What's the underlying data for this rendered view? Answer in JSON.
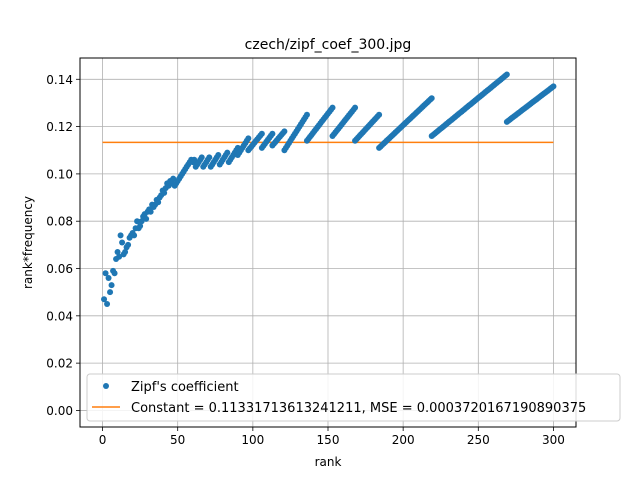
{
  "chart_data": {
    "type": "scatter",
    "title": "czech/zipf_coef_300.jpg",
    "xlabel": "rank",
    "ylabel": "rank*frequency",
    "xlim": [
      -15,
      315
    ],
    "ylim": [
      -0.007,
      0.149
    ],
    "xticks": [
      0,
      50,
      100,
      150,
      200,
      250,
      300
    ],
    "xtick_labels": [
      "0",
      "50",
      "100",
      "150",
      "200",
      "250",
      "300"
    ],
    "yticks": [
      0.0,
      0.02,
      0.04,
      0.06,
      0.08,
      0.1,
      0.12,
      0.14
    ],
    "ytick_labels": [
      "0.00",
      "0.02",
      "0.04",
      "0.06",
      "0.08",
      "0.10",
      "0.12",
      "0.14"
    ],
    "grid": true,
    "legend_position": "lower-right",
    "series": [
      {
        "name": "Zipf's coefficient",
        "kind": "points",
        "color": "#1f77b4",
        "early_points": [
          [
            1,
            0.047
          ],
          [
            2,
            0.058
          ],
          [
            3,
            0.045
          ],
          [
            4,
            0.056
          ],
          [
            5,
            0.05
          ],
          [
            6,
            0.053
          ],
          [
            7,
            0.059
          ],
          [
            8,
            0.058
          ],
          [
            9,
            0.064
          ],
          [
            10,
            0.067
          ],
          [
            11,
            0.065
          ],
          [
            12,
            0.074
          ],
          [
            13,
            0.071
          ],
          [
            14,
            0.066
          ],
          [
            15,
            0.067
          ],
          [
            16,
            0.069
          ],
          [
            17,
            0.07
          ],
          [
            18,
            0.073
          ],
          [
            19,
            0.074
          ],
          [
            20,
            0.075
          ],
          [
            21,
            0.074
          ],
          [
            22,
            0.077
          ],
          [
            23,
            0.08
          ],
          [
            24,
            0.077
          ],
          [
            25,
            0.078
          ],
          [
            26,
            0.08
          ],
          [
            27,
            0.082
          ],
          [
            28,
            0.083
          ],
          [
            29,
            0.081
          ],
          [
            30,
            0.084
          ],
          [
            31,
            0.085
          ],
          [
            32,
            0.084
          ],
          [
            33,
            0.087
          ],
          [
            34,
            0.086
          ],
          [
            35,
            0.087
          ],
          [
            36,
            0.089
          ],
          [
            37,
            0.088
          ],
          [
            38,
            0.09
          ],
          [
            39,
            0.091
          ],
          [
            40,
            0.093
          ],
          [
            41,
            0.092
          ],
          [
            42,
            0.094
          ],
          [
            43,
            0.096
          ],
          [
            44,
            0.095
          ],
          [
            45,
            0.097
          ],
          [
            46,
            0.096
          ],
          [
            47,
            0.098
          ],
          [
            48,
            0.095
          ],
          [
            49,
            0.096
          ],
          [
            50,
            0.097
          ],
          [
            51,
            0.098
          ],
          [
            52,
            0.099
          ],
          [
            53,
            0.1
          ],
          [
            54,
            0.101
          ],
          [
            55,
            0.102
          ],
          [
            56,
            0.103
          ],
          [
            57,
            0.104
          ],
          [
            58,
            0.105
          ],
          [
            59,
            0.106
          ],
          [
            60,
            0.105
          ],
          [
            61,
            0.106
          ],
          [
            62,
            0.103
          ],
          [
            63,
            0.104
          ],
          [
            64,
            0.105
          ],
          [
            65,
            0.106
          ],
          [
            66,
            0.107
          ],
          [
            67,
            0.103
          ],
          [
            68,
            0.104
          ],
          [
            69,
            0.105
          ],
          [
            70,
            0.106
          ],
          [
            71,
            0.107
          ],
          [
            72,
            0.103
          ],
          [
            73,
            0.104
          ],
          [
            74,
            0.105
          ],
          [
            75,
            0.106
          ],
          [
            76,
            0.107
          ],
          [
            77,
            0.108
          ],
          [
            78,
            0.104
          ],
          [
            79,
            0.105
          ],
          [
            80,
            0.106
          ],
          [
            81,
            0.107
          ],
          [
            82,
            0.108
          ],
          [
            83,
            0.109
          ],
          [
            84,
            0.105
          ],
          [
            85,
            0.106
          ],
          [
            86,
            0.107
          ],
          [
            87,
            0.108
          ],
          [
            88,
            0.109
          ],
          [
            89,
            0.11
          ],
          [
            90,
            0.111
          ]
        ],
        "segments": [
          {
            "x_start": 90,
            "x_end": 97,
            "y_start": 0.108,
            "y_end": 0.115
          },
          {
            "x_start": 97,
            "x_end": 106,
            "y_start": 0.11,
            "y_end": 0.117
          },
          {
            "x_start": 106,
            "x_end": 113,
            "y_start": 0.111,
            "y_end": 0.117
          },
          {
            "x_start": 113,
            "x_end": 121,
            "y_start": 0.112,
            "y_end": 0.118
          },
          {
            "x_start": 121,
            "x_end": 136,
            "y_start": 0.11,
            "y_end": 0.125
          },
          {
            "x_start": 136,
            "x_end": 153,
            "y_start": 0.114,
            "y_end": 0.128
          },
          {
            "x_start": 153,
            "x_end": 168,
            "y_start": 0.116,
            "y_end": 0.128
          },
          {
            "x_start": 168,
            "x_end": 184,
            "y_start": 0.114,
            "y_end": 0.125
          },
          {
            "x_start": 184,
            "x_end": 219,
            "y_start": 0.111,
            "y_end": 0.132
          },
          {
            "x_start": 219,
            "x_end": 269,
            "y_start": 0.116,
            "y_end": 0.142
          },
          {
            "x_start": 269,
            "x_end": 300,
            "y_start": 0.122,
            "y_end": 0.137
          }
        ]
      },
      {
        "name": "Constant = 0.11331713613241211, MSE = 0.0003720167190890375",
        "kind": "line",
        "color": "#ff7f0e",
        "x": [
          0,
          300
        ],
        "y": [
          0.11331713613241211,
          0.11331713613241211
        ]
      }
    ]
  }
}
